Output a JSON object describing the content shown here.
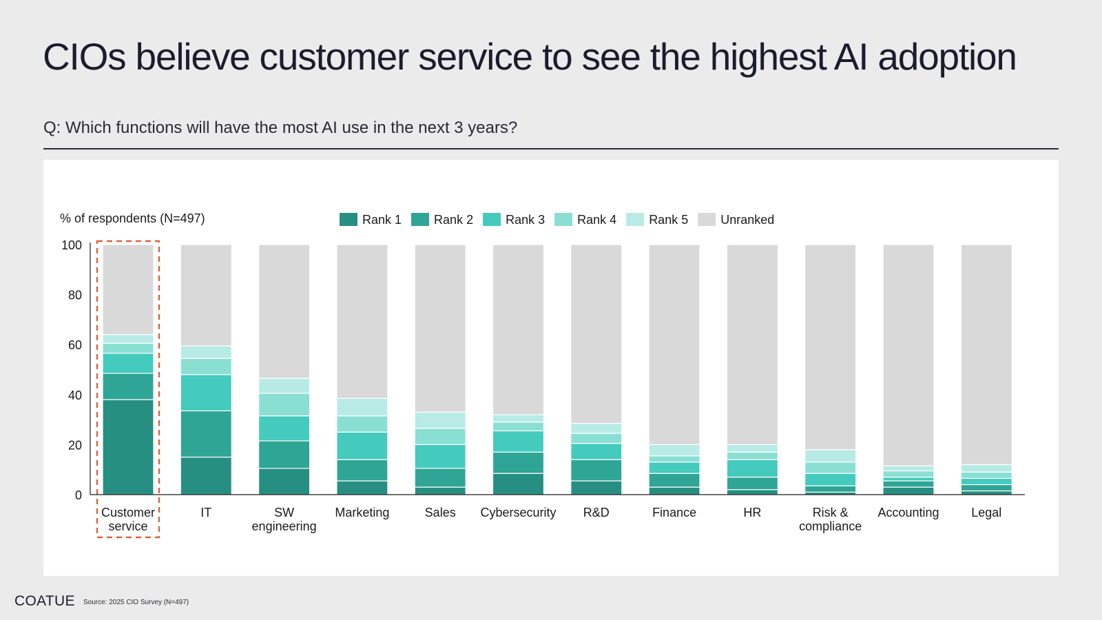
{
  "page": {
    "title": "CIOs believe customer service to see the highest AI adoption",
    "question": "Q: Which functions will have the most AI use in the next 3 years?"
  },
  "footer": {
    "logo": "COATUE",
    "source": "Source: 2025 CIO Survey (N=497)"
  },
  "colors": {
    "rank1": "#268f81",
    "rank2": "#2fa596",
    "rank3": "#44cbbd",
    "rank4": "#8adfd3",
    "rank5": "#b8ebe6",
    "unranked": "#d9d9d9",
    "highlight": "#d9643a"
  },
  "chart_data": {
    "type": "bar",
    "stacked": true,
    "ylabel": "% of respondents (N=497)",
    "ylim": [
      0,
      100
    ],
    "yticks": [
      0,
      20,
      40,
      60,
      80,
      100
    ],
    "categories": [
      "Customer service",
      "IT",
      "SW engineering",
      "Marketing",
      "Sales",
      "Cybersecurity",
      "R&D",
      "Finance",
      "HR",
      "Risk & compliance",
      "Accounting",
      "Legal"
    ],
    "category_lines": [
      [
        "Customer",
        "service"
      ],
      [
        "IT"
      ],
      [
        "SW",
        "engineering"
      ],
      [
        "Marketing"
      ],
      [
        "Sales"
      ],
      [
        "Cybersecurity"
      ],
      [
        "R&D"
      ],
      [
        "Finance"
      ],
      [
        "HR"
      ],
      [
        "Risk &",
        "compliance"
      ],
      [
        "Accounting"
      ],
      [
        "Legal"
      ]
    ],
    "highlighted_category": "Customer service",
    "series": [
      {
        "name": "Rank 1",
        "values": [
          38,
          15,
          10.5,
          5.5,
          3,
          8.5,
          5.5,
          3,
          2,
          1,
          3,
          1.5
        ]
      },
      {
        "name": "Rank 2",
        "values": [
          10.5,
          18.5,
          11,
          8.5,
          7.5,
          8.5,
          8.5,
          5.5,
          5,
          2.5,
          2.5,
          2.5
        ]
      },
      {
        "name": "Rank 3",
        "values": [
          8,
          14.5,
          10,
          11,
          9.5,
          8.5,
          6.5,
          4.5,
          7,
          5,
          1.5,
          2.5
        ]
      },
      {
        "name": "Rank 4",
        "values": [
          4,
          6.5,
          9,
          6.5,
          6.5,
          3.5,
          4,
          2.5,
          3,
          4.5,
          2.5,
          2.5
        ]
      },
      {
        "name": "Rank 5",
        "values": [
          3.5,
          5,
          6,
          7,
          6.5,
          3,
          4,
          4.5,
          3,
          5,
          2,
          3
        ]
      },
      {
        "name": "Unranked",
        "values": [
          36,
          40.5,
          53.5,
          61.5,
          67,
          68,
          71.5,
          80,
          80,
          82,
          88.5,
          88
        ]
      }
    ],
    "legend_position": "top"
  }
}
